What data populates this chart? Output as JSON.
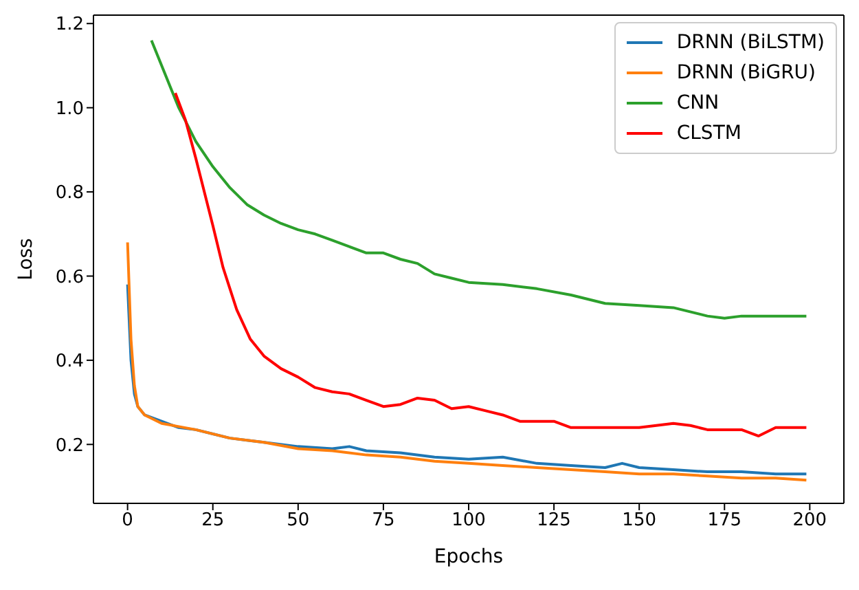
{
  "chart_data": {
    "type": "line",
    "xlabel": "Epochs",
    "ylabel": "Loss",
    "xlim": [
      -10,
      210
    ],
    "ylim": [
      0.06,
      1.22
    ],
    "xticks": [
      0,
      25,
      50,
      75,
      100,
      125,
      150,
      175,
      200
    ],
    "yticks": [
      {
        "value": 0.2,
        "label": "0.2"
      },
      {
        "value": 0.4,
        "label": "0.4"
      },
      {
        "value": 0.6,
        "label": "0.6"
      },
      {
        "value": 0.8,
        "label": "0.8"
      },
      {
        "value": 1.0,
        "label": "1.0"
      },
      {
        "value": 1.2,
        "label": "1.2"
      }
    ],
    "legend": "top right",
    "grid": false,
    "marker": "none",
    "line_style": "solid",
    "series": [
      {
        "name": "DRNN (BiLSTM)",
        "color": "#1f77b4",
        "x": [
          0,
          1,
          2,
          3,
          5,
          10,
          15,
          20,
          25,
          30,
          35,
          40,
          50,
          60,
          65,
          70,
          80,
          90,
          100,
          110,
          120,
          130,
          140,
          145,
          150,
          160,
          170,
          180,
          190,
          199
        ],
        "values": [
          0.58,
          0.4,
          0.32,
          0.29,
          0.27,
          0.255,
          0.24,
          0.235,
          0.225,
          0.215,
          0.21,
          0.205,
          0.195,
          0.19,
          0.195,
          0.185,
          0.18,
          0.17,
          0.165,
          0.17,
          0.155,
          0.15,
          0.145,
          0.155,
          0.145,
          0.14,
          0.135,
          0.135,
          0.13,
          0.13
        ]
      },
      {
        "name": "DRNN (BiGRU)",
        "color": "#ff7f0e",
        "x": [
          0,
          1,
          2,
          3,
          5,
          10,
          20,
          30,
          40,
          50,
          60,
          70,
          80,
          90,
          100,
          110,
          120,
          130,
          140,
          150,
          160,
          170,
          180,
          190,
          199
        ],
        "values": [
          0.68,
          0.45,
          0.34,
          0.29,
          0.27,
          0.25,
          0.235,
          0.215,
          0.205,
          0.19,
          0.185,
          0.175,
          0.17,
          0.16,
          0.155,
          0.15,
          0.145,
          0.14,
          0.135,
          0.13,
          0.13,
          0.125,
          0.12,
          0.12,
          0.115
        ]
      },
      {
        "name": "CNN",
        "color": "#2ca02c",
        "x": [
          7,
          10,
          15,
          20,
          25,
          30,
          35,
          40,
          45,
          50,
          55,
          60,
          65,
          70,
          75,
          80,
          85,
          90,
          95,
          100,
          110,
          120,
          130,
          140,
          150,
          160,
          170,
          175,
          180,
          190,
          199
        ],
        "values": [
          1.16,
          1.1,
          1.0,
          0.92,
          0.86,
          0.81,
          0.77,
          0.745,
          0.725,
          0.71,
          0.7,
          0.685,
          0.67,
          0.655,
          0.655,
          0.64,
          0.63,
          0.605,
          0.595,
          0.585,
          0.58,
          0.57,
          0.555,
          0.535,
          0.53,
          0.525,
          0.505,
          0.5,
          0.505,
          0.505,
          0.505
        ]
      },
      {
        "name": "CLSTM",
        "color": "#ff0000",
        "x": [
          14,
          17,
          20,
          25,
          28,
          32,
          36,
          40,
          45,
          50,
          55,
          60,
          65,
          70,
          75,
          80,
          85,
          90,
          95,
          100,
          105,
          110,
          115,
          120,
          125,
          130,
          140,
          150,
          160,
          165,
          170,
          180,
          185,
          190,
          199
        ],
        "values": [
          1.035,
          0.97,
          0.88,
          0.72,
          0.62,
          0.52,
          0.45,
          0.41,
          0.38,
          0.36,
          0.335,
          0.325,
          0.32,
          0.305,
          0.29,
          0.295,
          0.31,
          0.305,
          0.285,
          0.29,
          0.28,
          0.27,
          0.255,
          0.255,
          0.255,
          0.24,
          0.24,
          0.24,
          0.25,
          0.245,
          0.235,
          0.235,
          0.22,
          0.24,
          0.24
        ]
      }
    ]
  }
}
